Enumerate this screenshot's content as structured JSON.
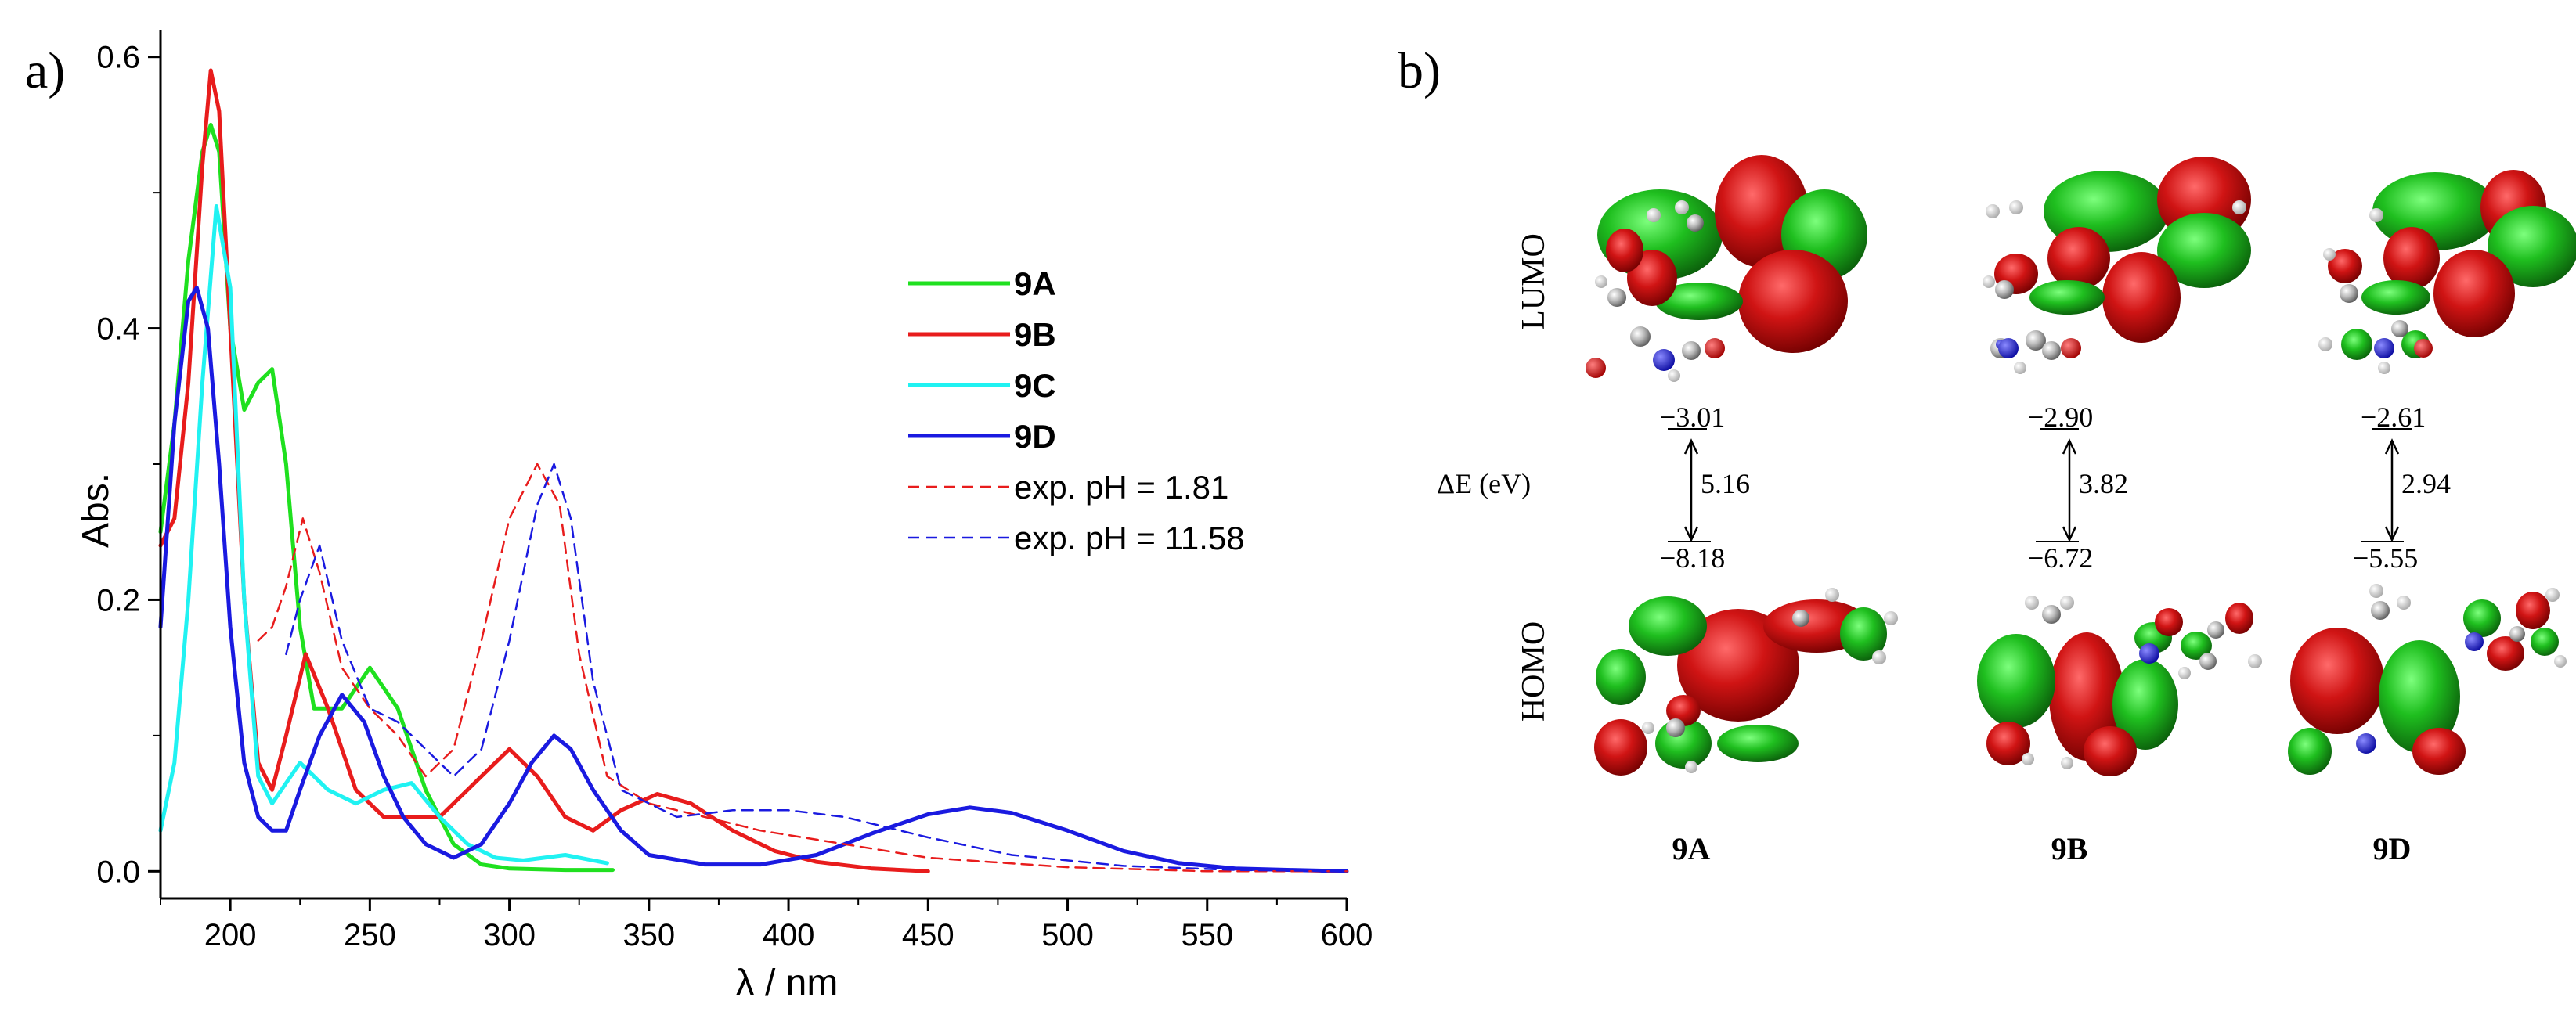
{
  "chart_data": [
    {
      "panel_label": "a)",
      "type": "line",
      "xlabel": "λ / nm",
      "ylabel": "Abs.",
      "xlim": [
        175,
        600
      ],
      "ylim": [
        -0.02,
        0.62
      ],
      "xticks": [
        200,
        250,
        300,
        350,
        400,
        450,
        500,
        550,
        600
      ],
      "xtick_labels": [
        "200",
        "250",
        "300",
        "350",
        "400",
        "450",
        "500",
        "550",
        "600"
      ],
      "yticks": [
        0.0,
        0.2,
        0.4,
        0.6
      ],
      "ytick_labels": [
        "0.0",
        "0.2",
        "0.4",
        "0.6"
      ],
      "legend_position": "center-right",
      "series": [
        {
          "name": "9A",
          "style": "solid",
          "color": "#1fe01f",
          "x": [
            175,
            180,
            185,
            190,
            193,
            196,
            200,
            205,
            210,
            215,
            220,
            225,
            230,
            240,
            250,
            260,
            270,
            280,
            290,
            300,
            320,
            337
          ],
          "y": [
            0.25,
            0.33,
            0.45,
            0.53,
            0.55,
            0.53,
            0.4,
            0.34,
            0.36,
            0.37,
            0.3,
            0.18,
            0.12,
            0.12,
            0.15,
            0.12,
            0.06,
            0.02,
            0.005,
            0.002,
            0.001,
            0.001
          ]
        },
        {
          "name": "9B",
          "style": "solid",
          "color": "#e81c1c",
          "x": [
            175,
            180,
            185,
            190,
            193,
            196,
            200,
            205,
            210,
            215,
            220,
            227,
            235,
            245,
            255,
            265,
            275,
            285,
            290,
            300,
            310,
            320,
            330,
            340,
            353,
            365,
            380,
            395,
            410,
            430,
            450
          ],
          "y": [
            0.24,
            0.26,
            0.36,
            0.52,
            0.59,
            0.56,
            0.4,
            0.2,
            0.08,
            0.06,
            0.1,
            0.16,
            0.12,
            0.06,
            0.04,
            0.04,
            0.04,
            0.06,
            0.07,
            0.09,
            0.07,
            0.04,
            0.03,
            0.045,
            0.057,
            0.05,
            0.03,
            0.015,
            0.007,
            0.002,
            0.0
          ]
        },
        {
          "name": "9C",
          "style": "solid",
          "color": "#20f2f2",
          "x": [
            175,
            180,
            185,
            190,
            195,
            200,
            205,
            210,
            215,
            225,
            235,
            245,
            255,
            265,
            275,
            285,
            295,
            305,
            320,
            335
          ],
          "y": [
            0.03,
            0.08,
            0.2,
            0.36,
            0.49,
            0.43,
            0.2,
            0.07,
            0.05,
            0.08,
            0.06,
            0.05,
            0.06,
            0.065,
            0.04,
            0.02,
            0.01,
            0.008,
            0.012,
            0.006
          ]
        },
        {
          "name": "9D",
          "style": "solid",
          "color": "#1a1ae0",
          "x": [
            175,
            180,
            185,
            188,
            192,
            196,
            200,
            205,
            210,
            215,
            220,
            225,
            232,
            240,
            248,
            255,
            262,
            270,
            280,
            290,
            300,
            308,
            316,
            322,
            330,
            340,
            350,
            370,
            390,
            410,
            430,
            450,
            465,
            480,
            500,
            520,
            540,
            560,
            580,
            600
          ],
          "y": [
            0.18,
            0.33,
            0.42,
            0.43,
            0.4,
            0.3,
            0.18,
            0.08,
            0.04,
            0.03,
            0.03,
            0.06,
            0.1,
            0.13,
            0.11,
            0.07,
            0.04,
            0.02,
            0.01,
            0.02,
            0.05,
            0.08,
            0.1,
            0.09,
            0.06,
            0.03,
            0.012,
            0.005,
            0.005,
            0.012,
            0.028,
            0.042,
            0.047,
            0.043,
            0.03,
            0.015,
            0.006,
            0.002,
            0.001,
            0.0
          ]
        },
        {
          "name": "exp. pH = 1.81",
          "style": "dashed",
          "color": "#e81c1c",
          "x": [
            210,
            215,
            220,
            226,
            232,
            240,
            250,
            260,
            270,
            280,
            290,
            300,
            310,
            318,
            325,
            335,
            350,
            370,
            390,
            420,
            450,
            500,
            550,
            600
          ],
          "y": [
            0.17,
            0.18,
            0.21,
            0.26,
            0.22,
            0.15,
            0.12,
            0.1,
            0.07,
            0.09,
            0.17,
            0.26,
            0.3,
            0.27,
            0.16,
            0.07,
            0.05,
            0.04,
            0.03,
            0.02,
            0.01,
            0.003,
            0.0,
            0.0
          ]
        },
        {
          "name": "exp. pH = 11.58",
          "style": "dashed",
          "color": "#1a1ae0",
          "x": [
            220,
            225,
            232,
            240,
            250,
            260,
            270,
            280,
            290,
            300,
            310,
            316,
            322,
            330,
            340,
            360,
            380,
            400,
            420,
            450,
            480,
            520,
            560,
            600
          ],
          "y": [
            0.16,
            0.2,
            0.24,
            0.17,
            0.12,
            0.11,
            0.09,
            0.07,
            0.09,
            0.17,
            0.27,
            0.3,
            0.26,
            0.14,
            0.06,
            0.04,
            0.045,
            0.045,
            0.04,
            0.025,
            0.012,
            0.004,
            0.001,
            0.0
          ]
        }
      ]
    },
    {
      "panel_label": "b)",
      "type": "energy-level-diagram",
      "row_labels": {
        "lumo": "LUMO",
        "homo": "HOMO"
      },
      "gap_label": "ΔE (eV)",
      "columns": [
        {
          "name": "9A",
          "lumo": "−3.01",
          "homo": "−8.18",
          "gap": "5.16"
        },
        {
          "name": "9B",
          "lumo": "−2.90",
          "homo": "−6.72",
          "gap": "3.82"
        },
        {
          "name": "9D",
          "lumo": "−2.61",
          "homo": "−5.55",
          "gap": "2.94"
        }
      ]
    }
  ]
}
